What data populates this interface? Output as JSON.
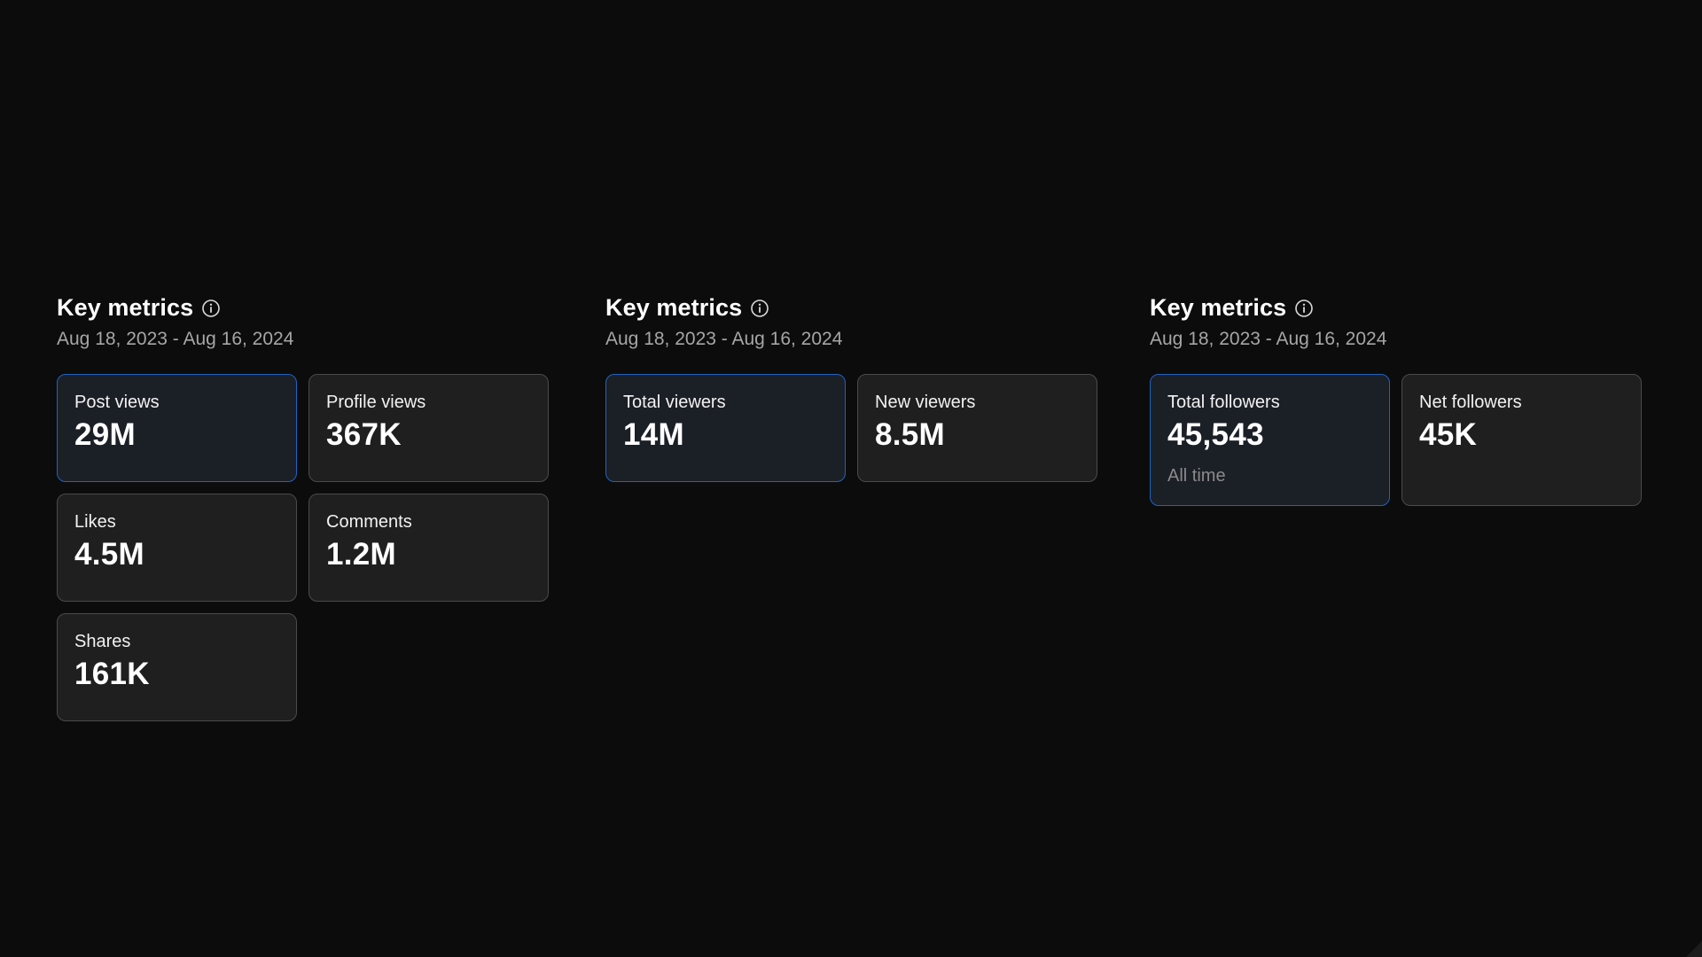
{
  "colors": {
    "background": "#0c0c0c",
    "card": "#1f1f1f",
    "card_active": "#1b1f26",
    "card_border": "#4a4a4a",
    "accent_border": "#1e63c4",
    "muted_text": "#a6a6a6"
  },
  "panels": [
    {
      "title": "Key metrics",
      "info_icon": "info-icon",
      "date_range": "Aug 18, 2023 - Aug 16, 2024",
      "cards": [
        {
          "label": "Post views",
          "value": "29M",
          "active": true
        },
        {
          "label": "Profile views",
          "value": "367K",
          "active": false
        },
        {
          "label": "Likes",
          "value": "4.5M",
          "active": false
        },
        {
          "label": "Comments",
          "value": "1.2M",
          "active": false
        },
        {
          "label": "Shares",
          "value": "161K",
          "active": false
        }
      ]
    },
    {
      "title": "Key metrics",
      "info_icon": "info-icon",
      "date_range": "Aug 18, 2023 - Aug 16, 2024",
      "cards": [
        {
          "label": "Total viewers",
          "value": "14M",
          "active": true
        },
        {
          "label": "New viewers",
          "value": "8.5M",
          "active": false
        }
      ]
    },
    {
      "title": "Key metrics",
      "info_icon": "info-icon",
      "date_range": "Aug 18, 2023 - Aug 16, 2024",
      "cards": [
        {
          "label": "Total followers",
          "value": "45,543",
          "note": "All time",
          "active": true
        },
        {
          "label": "Net followers",
          "value": "45K",
          "active": false
        }
      ]
    }
  ]
}
